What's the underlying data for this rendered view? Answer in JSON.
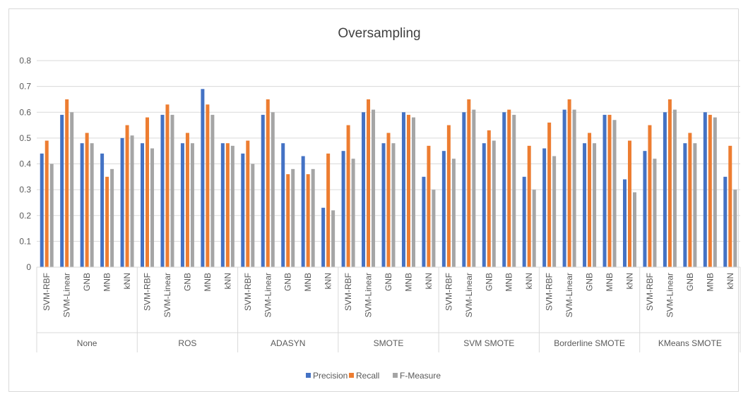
{
  "chart_data": {
    "type": "bar",
    "title": "Oversampling",
    "xlabel": "",
    "ylabel": "",
    "ylim": [
      0,
      0.8
    ],
    "yticks": [
      "0",
      "0.1",
      "0.2",
      "0.3",
      "0.4",
      "0.5",
      "0.6",
      "0.7",
      "0.8"
    ],
    "grid": true,
    "legend_position": "bottom",
    "groups": [
      "None",
      "ROS",
      "ADASYN",
      "SMOTE",
      "SVM SMOTE",
      "Borderline SMOTE",
      "KMeans SMOTE"
    ],
    "classifiers": [
      "SVM-RBF",
      "SVM-Linear",
      "GNB",
      "MNB",
      "kNN"
    ],
    "series": [
      {
        "name": "Precision",
        "color": "#4472c4",
        "values": [
          0.44,
          0.59,
          0.48,
          0.44,
          0.5,
          0.48,
          0.59,
          0.48,
          0.69,
          0.48,
          0.44,
          0.59,
          0.48,
          0.43,
          0.23,
          0.45,
          0.6,
          0.48,
          0.6,
          0.35,
          0.45,
          0.6,
          0.48,
          0.6,
          0.35,
          0.46,
          0.61,
          0.48,
          0.59,
          0.34,
          0.45,
          0.6,
          0.48,
          0.6,
          0.35
        ]
      },
      {
        "name": "Recall",
        "color": "#ed7d31",
        "values": [
          0.49,
          0.65,
          0.52,
          0.35,
          0.55,
          0.58,
          0.63,
          0.52,
          0.63,
          0.48,
          0.49,
          0.65,
          0.36,
          0.36,
          0.44,
          0.55,
          0.65,
          0.52,
          0.59,
          0.47,
          0.55,
          0.65,
          0.53,
          0.61,
          0.47,
          0.56,
          0.65,
          0.52,
          0.59,
          0.49,
          0.55,
          0.65,
          0.52,
          0.59,
          0.47
        ]
      },
      {
        "name": "F-Measure",
        "color": "#a5a5a5",
        "values": [
          0.4,
          0.6,
          0.48,
          0.38,
          0.51,
          0.46,
          0.59,
          0.48,
          0.59,
          0.47,
          0.4,
          0.6,
          0.38,
          0.38,
          0.22,
          0.42,
          0.61,
          0.48,
          0.58,
          0.3,
          0.42,
          0.61,
          0.49,
          0.59,
          0.3,
          0.43,
          0.61,
          0.48,
          0.57,
          0.29,
          0.42,
          0.61,
          0.48,
          0.58,
          0.3
        ]
      }
    ]
  }
}
